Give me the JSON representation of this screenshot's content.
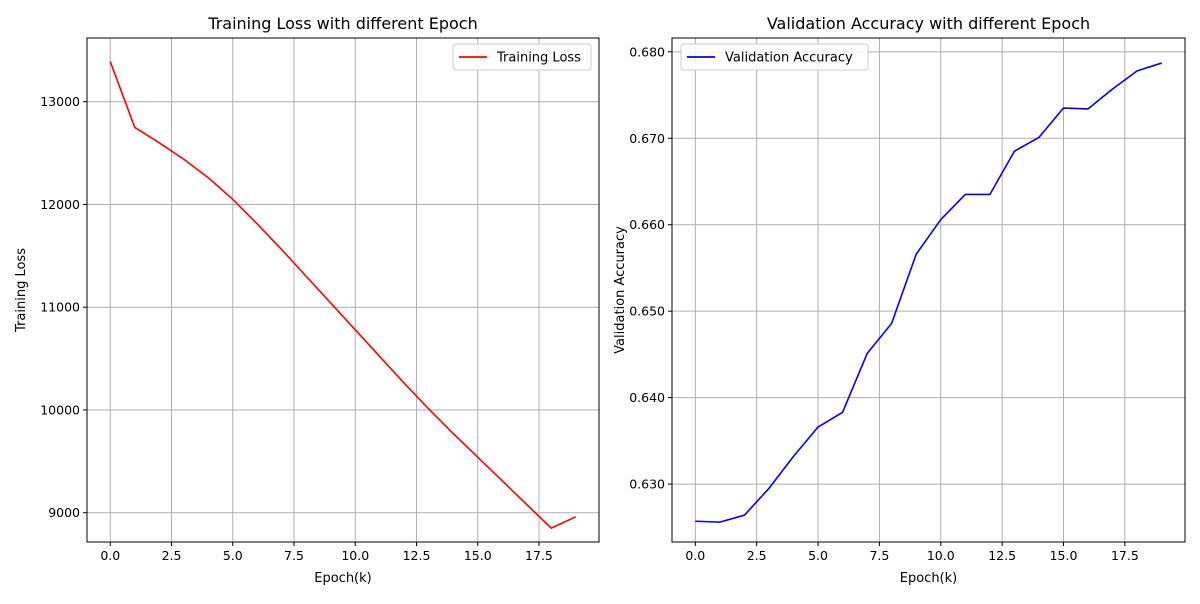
{
  "chart_data": [
    {
      "type": "line",
      "title": "Training Loss with different Epoch",
      "xlabel": "Epoch(k)",
      "ylabel": "Training Loss",
      "xlim": [
        -0.95,
        19.95
      ],
      "ylim": [
        8715,
        13620
      ],
      "x_ticks": [
        0,
        2.5,
        5,
        7.5,
        10,
        12.5,
        15,
        17.5
      ],
      "x_tick_labels": [
        "0.0",
        "2.5",
        "5.0",
        "7.5",
        "10.0",
        "12.5",
        "15.0",
        "17.5"
      ],
      "y_ticks": [
        9000,
        10000,
        11000,
        12000,
        13000
      ],
      "y_tick_labels": [
        "9000",
        "10000",
        "11000",
        "12000",
        "13000"
      ],
      "grid": true,
      "legend_position": "top-right",
      "series": [
        {
          "name": "Training Loss",
          "color": "#ff0000",
          "x": [
            0,
            1,
            2,
            3,
            4,
            5,
            6,
            7,
            8,
            9,
            10,
            11,
            12,
            13,
            14,
            15,
            16,
            17,
            18,
            19
          ],
          "values": [
            13390,
            12750,
            12600,
            12440,
            12260,
            12050,
            11810,
            11560,
            11300,
            11040,
            10780,
            10520,
            10260,
            10010,
            9770,
            9540,
            9310,
            9080,
            8850,
            8960
          ]
        }
      ]
    },
    {
      "type": "line",
      "title": "Validation Accuracy with different Epoch",
      "xlabel": "Epoch(k)",
      "ylabel": "Validation Accuracy",
      "xlim": [
        -0.95,
        19.95
      ],
      "ylim": [
        0.6233,
        0.6816
      ],
      "x_ticks": [
        0,
        2.5,
        5,
        7.5,
        10,
        12.5,
        15,
        17.5
      ],
      "x_tick_labels": [
        "0.0",
        "2.5",
        "5.0",
        "7.5",
        "10.0",
        "12.5",
        "15.0",
        "17.5"
      ],
      "y_ticks": [
        0.63,
        0.64,
        0.65,
        0.66,
        0.67,
        0.68
      ],
      "y_tick_labels": [
        "0.630",
        "0.640",
        "0.650",
        "0.660",
        "0.670",
        "0.680"
      ],
      "grid": true,
      "legend_position": "top-left",
      "series": [
        {
          "name": "Validation Accuracy",
          "color": "#0000ff",
          "x": [
            0,
            1,
            2,
            3,
            4,
            5,
            6,
            7,
            8,
            9,
            10,
            11,
            12,
            13,
            14,
            15,
            16,
            17,
            18,
            19
          ],
          "values": [
            0.6257,
            0.6256,
            0.6264,
            0.6295,
            0.6332,
            0.6366,
            0.6383,
            0.6451,
            0.6486,
            0.6566,
            0.6606,
            0.6635,
            0.6635,
            0.6685,
            0.6701,
            0.6735,
            0.6734,
            0.6757,
            0.6778,
            0.6787
          ]
        }
      ]
    }
  ]
}
